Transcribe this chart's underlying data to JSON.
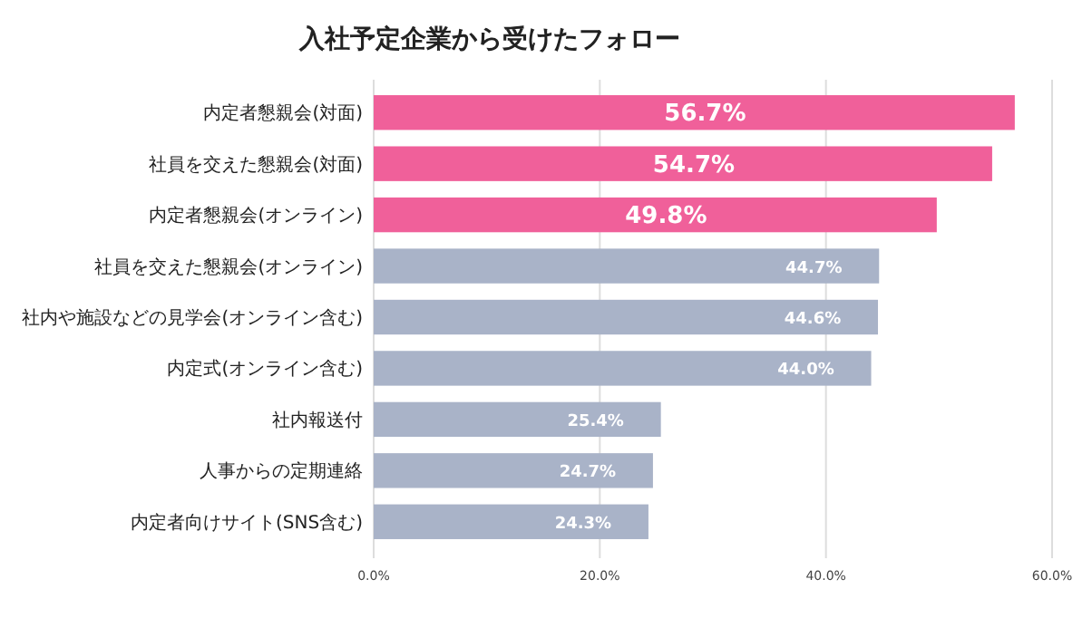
{
  "chart_data": {
    "type": "bar",
    "orientation": "horizontal",
    "title": "入社予定企業から受けたフォロー",
    "categories": [
      "内定者懇親会(対面)",
      "社員を交えた懇親会(対面)",
      "内定者懇親会(オンライン)",
      "社員を交えた懇親会(オンライン)",
      "社内や施設などの見学会(オンライン含む)",
      "内定式(オンライン含む)",
      "社内報送付",
      "人事からの定期連絡",
      "内定者向けサイト(SNS含む)"
    ],
    "values": [
      56.7,
      54.7,
      49.8,
      44.7,
      44.6,
      44.0,
      25.4,
      24.7,
      24.3
    ],
    "value_labels": [
      "56.7%",
      "54.7%",
      "49.8%",
      "44.7%",
      "44.6%",
      "44.0%",
      "25.4%",
      "24.7%",
      "24.3%"
    ],
    "colors": [
      "#f0609a",
      "#f0609a",
      "#f0609a",
      "#a9b3c8",
      "#a9b3c8",
      "#a9b3c8",
      "#a9b3c8",
      "#a9b3c8",
      "#a9b3c8"
    ],
    "xlim": [
      0,
      60
    ],
    "xticks": [
      {
        "value": 0,
        "label": "0.0%"
      },
      {
        "value": 20,
        "label": "20.0%"
      },
      {
        "value": 40,
        "label": "40.0%"
      },
      {
        "value": 60,
        "label": "60.0%"
      }
    ],
    "grid": "x"
  }
}
